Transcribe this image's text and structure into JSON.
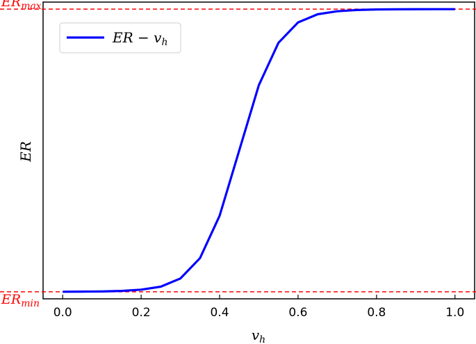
{
  "chart_data": {
    "type": "line",
    "xlabel": "v_h",
    "ylabel": "ER",
    "xlim": [
      -0.05,
      1.05
    ],
    "ylim": [
      -0.025,
      1.025
    ],
    "x_ticks": [
      0.0,
      0.2,
      0.4,
      0.6,
      0.8,
      1.0
    ],
    "x_tick_labels": [
      "0.0",
      "0.2",
      "0.4",
      "0.6",
      "0.8",
      "1.0"
    ],
    "y_ticks": [],
    "grid": false,
    "legend_position": "upper-left",
    "series": [
      {
        "name": "ER − v_h",
        "color": "#0000ff",
        "x": [
          0.0,
          0.05,
          0.1,
          0.15,
          0.2,
          0.25,
          0.3,
          0.35,
          0.4,
          0.45,
          0.5,
          0.55,
          0.6,
          0.65,
          0.7,
          0.75,
          0.8,
          0.85,
          0.9,
          0.95,
          1.0
        ],
        "y": [
          0.0,
          0.0005,
          0.0012,
          0.003,
          0.0074,
          0.018,
          0.047,
          0.119,
          0.269,
          0.5,
          0.731,
          0.881,
          0.953,
          0.982,
          0.9926,
          0.997,
          0.9988,
          0.9995,
          0.9998,
          0.9999,
          1.0
        ]
      }
    ],
    "reference_lines": [
      {
        "label": "ER_max",
        "y": 1.0,
        "color": "#ff0000",
        "style": "dashed"
      },
      {
        "label": "ER_min",
        "y": 0.0,
        "color": "#ff0000",
        "style": "dashed"
      }
    ]
  }
}
